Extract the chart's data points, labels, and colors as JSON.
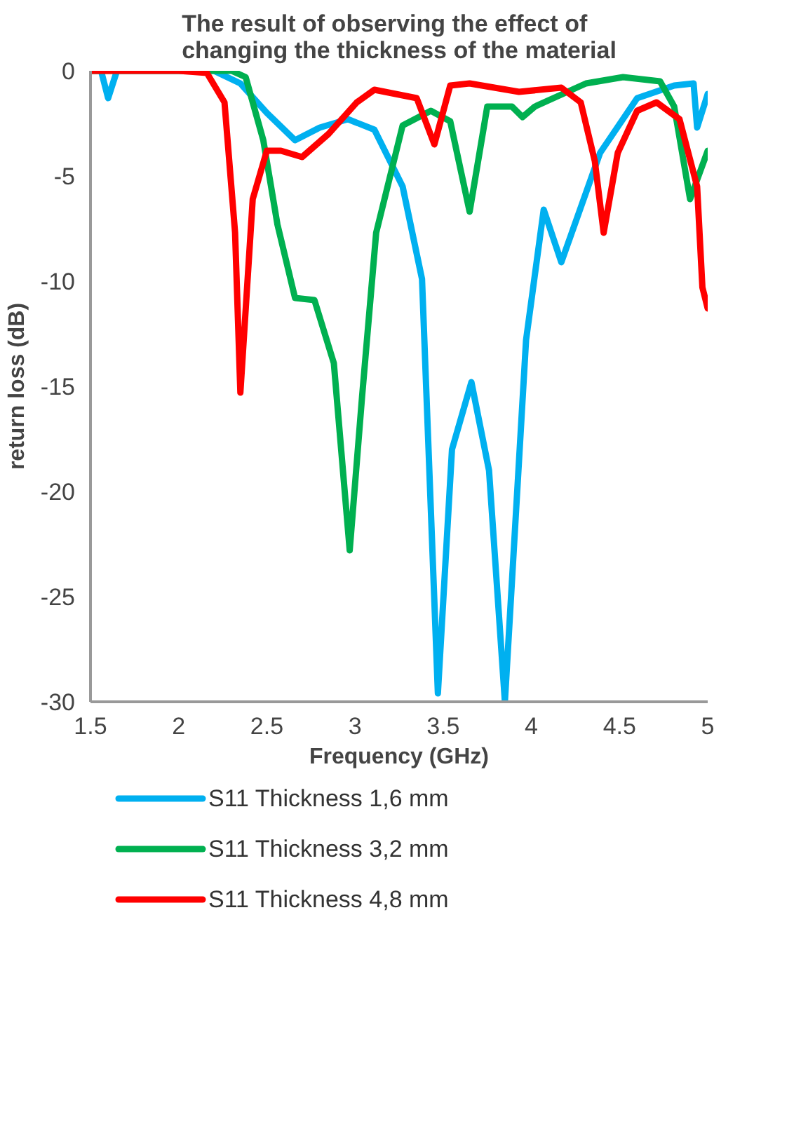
{
  "chart_data": {
    "type": "line",
    "title": "The result of observing the effect of changing the thickness of the material",
    "xlabel": "Frequency (GHz)",
    "ylabel": "return loss (dB)",
    "xlim": [
      1.5,
      5
    ],
    "ylim": [
      -30,
      0
    ],
    "xticks": [
      1.5,
      2,
      2.5,
      3,
      3.5,
      4,
      4.5,
      5
    ],
    "yticks": [
      0,
      -5,
      -10,
      -15,
      -20,
      -25,
      -30
    ],
    "grid": false,
    "legend": "bottom",
    "marker": "none",
    "line_style": "solid",
    "series": [
      {
        "name": "S11 Thickness 1,6 mm",
        "color": "#00b0f0",
        "x": [
          1.5,
          1.56,
          1.6,
          1.65,
          1.8,
          2.0,
          2.2,
          2.35,
          2.5,
          2.66,
          2.8,
          2.96,
          3.11,
          3.27,
          3.38,
          3.47,
          3.55,
          3.66,
          3.76,
          3.85,
          3.97,
          4.07,
          4.17,
          4.28,
          4.39,
          4.6,
          4.81,
          4.92,
          4.94,
          5.0
        ],
        "values": [
          0,
          0,
          -1.3,
          0,
          0,
          0,
          0,
          -0.6,
          -2.0,
          -3.3,
          -2.7,
          -2.3,
          -2.8,
          -5.5,
          -9.9,
          -29.6,
          -18,
          -14.8,
          -19,
          -30,
          -12.8,
          -6.6,
          -9.1,
          -6.5,
          -3.9,
          -1.3,
          -0.7,
          -0.6,
          -2.7,
          -1.1
        ]
      },
      {
        "name": "S11 Thickness 3,2 mm",
        "color": "#00b050",
        "x": [
          1.5,
          2.0,
          2.3,
          2.38,
          2.48,
          2.56,
          2.66,
          2.77,
          2.88,
          2.97,
          3.04,
          3.12,
          3.27,
          3.43,
          3.54,
          3.65,
          3.75,
          3.89,
          3.95,
          4.02,
          4.31,
          4.52,
          4.73,
          4.81,
          4.9,
          5.0
        ],
        "values": [
          0,
          0,
          0,
          -0.3,
          -3.3,
          -7.3,
          -10.8,
          -10.9,
          -13.9,
          -22.8,
          -15.5,
          -7.7,
          -2.6,
          -1.9,
          -2.4,
          -6.7,
          -1.7,
          -1.7,
          -2.2,
          -1.7,
          -0.6,
          -0.3,
          -0.5,
          -1.7,
          -6.1,
          -3.8
        ]
      },
      {
        "name": "S11 Thickness 4,8 mm",
        "color": "#ff0000",
        "x": [
          1.5,
          2.0,
          2.16,
          2.26,
          2.32,
          2.35,
          2.42,
          2.5,
          2.58,
          2.7,
          2.85,
          3.01,
          3.11,
          3.35,
          3.45,
          3.54,
          3.65,
          3.93,
          4.17,
          4.28,
          4.36,
          4.41,
          4.49,
          4.6,
          4.71,
          4.84,
          4.94,
          4.97,
          5.0
        ],
        "values": [
          0,
          0,
          -0.1,
          -1.5,
          -7.7,
          -15.3,
          -6.1,
          -3.8,
          -3.8,
          -4.1,
          -3.0,
          -1.5,
          -0.9,
          -1.3,
          -3.5,
          -0.7,
          -0.6,
          -1.0,
          -0.8,
          -1.5,
          -4.3,
          -7.7,
          -3.9,
          -1.9,
          -1.5,
          -2.3,
          -5.5,
          -10.3,
          -11.3
        ]
      }
    ]
  }
}
